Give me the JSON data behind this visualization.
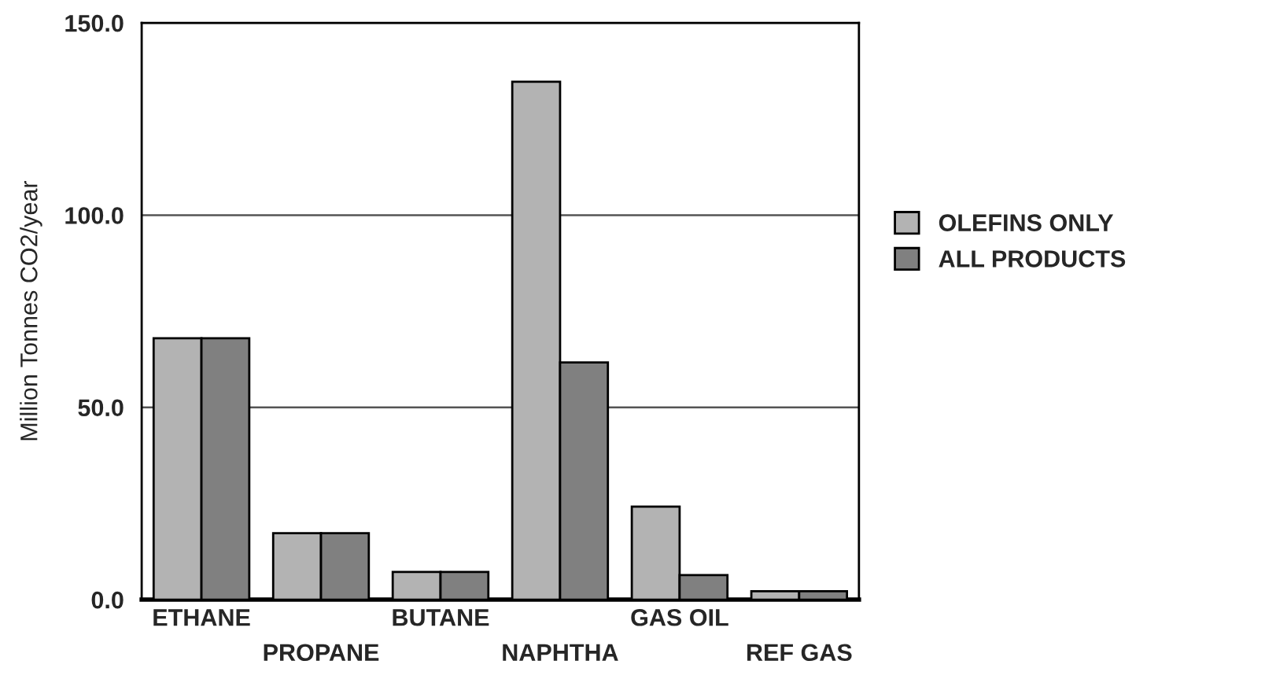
{
  "chart_data": {
    "type": "bar",
    "ylabel": "Million Tonnes CO2/year",
    "categories": [
      "ETHANE",
      "PROPANE",
      "BUTANE",
      "NAPHTHA",
      "GAS OIL",
      "REF GAS"
    ],
    "series": [
      {
        "name": "OLEFINS ONLY",
        "color": "#b3b3b3",
        "values": [
          68.0,
          17.3,
          7.2,
          134.7,
          24.2,
          2.2
        ]
      },
      {
        "name": "ALL PRODUCTS",
        "color": "#808080",
        "values": [
          68.0,
          17.3,
          7.2,
          61.7,
          6.4,
          2.2
        ]
      }
    ],
    "ylim": [
      0,
      150
    ],
    "yticks": [
      {
        "value": 0,
        "label": "0.0"
      },
      {
        "value": 50,
        "label": "50.0"
      },
      {
        "value": 100,
        "label": "100.0"
      },
      {
        "value": 150,
        "label": "150.0"
      }
    ],
    "grid": "y",
    "legend": "right"
  }
}
